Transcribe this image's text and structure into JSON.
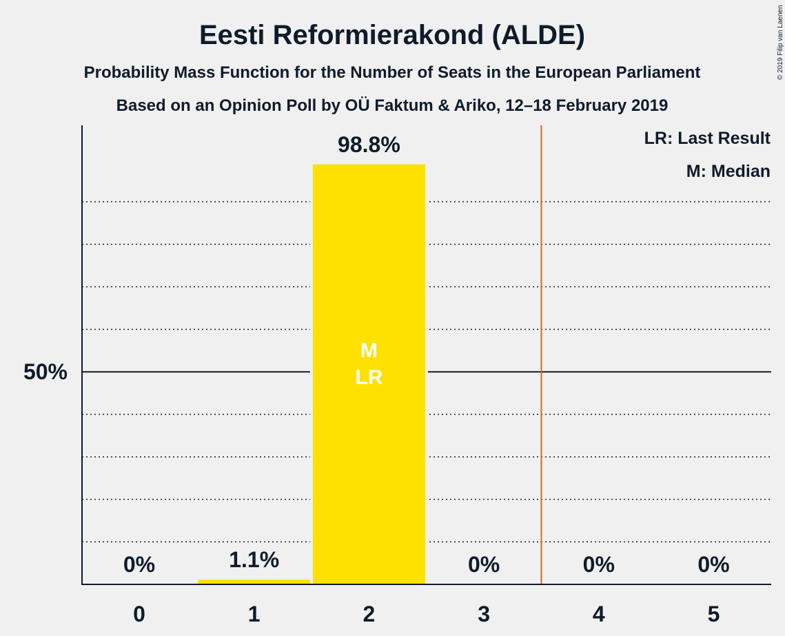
{
  "chart_data": {
    "type": "bar",
    "title": "Eesti Reformierakond (ALDE)",
    "subtitle": "Probability Mass Function for the Number of Seats in the European Parliament",
    "subtitle2": "Based on an Opinion Poll by OÜ Faktum & Ariko, 12–18 February 2019",
    "categories": [
      "0",
      "1",
      "2",
      "3",
      "4",
      "5"
    ],
    "values": [
      0,
      1.1,
      98.8,
      0,
      0,
      0
    ],
    "value_labels": [
      "0%",
      "1.1%",
      "98.8%",
      "0%",
      "0%",
      "0%"
    ],
    "ylim": [
      0,
      108
    ],
    "y_gridlines": [
      10,
      20,
      30,
      40,
      60,
      70,
      80,
      90
    ],
    "y_major_line": 50,
    "y_major_label": "50%",
    "last_result_line_after": 3,
    "median_index": 2,
    "last_result_index": 2,
    "in_bar_labels": [
      "M",
      "LR"
    ],
    "legend": [
      "LR: Last Result",
      "M: Median"
    ],
    "credit": "© 2019 Filip van Laenen",
    "colors": {
      "bar": "#ffe100",
      "text": "#0f1b2a",
      "inbar_text": "#ffffff",
      "last_result_line": "#d2691e",
      "grid": "#0f1b2a",
      "background": "#f0f0f0"
    }
  }
}
